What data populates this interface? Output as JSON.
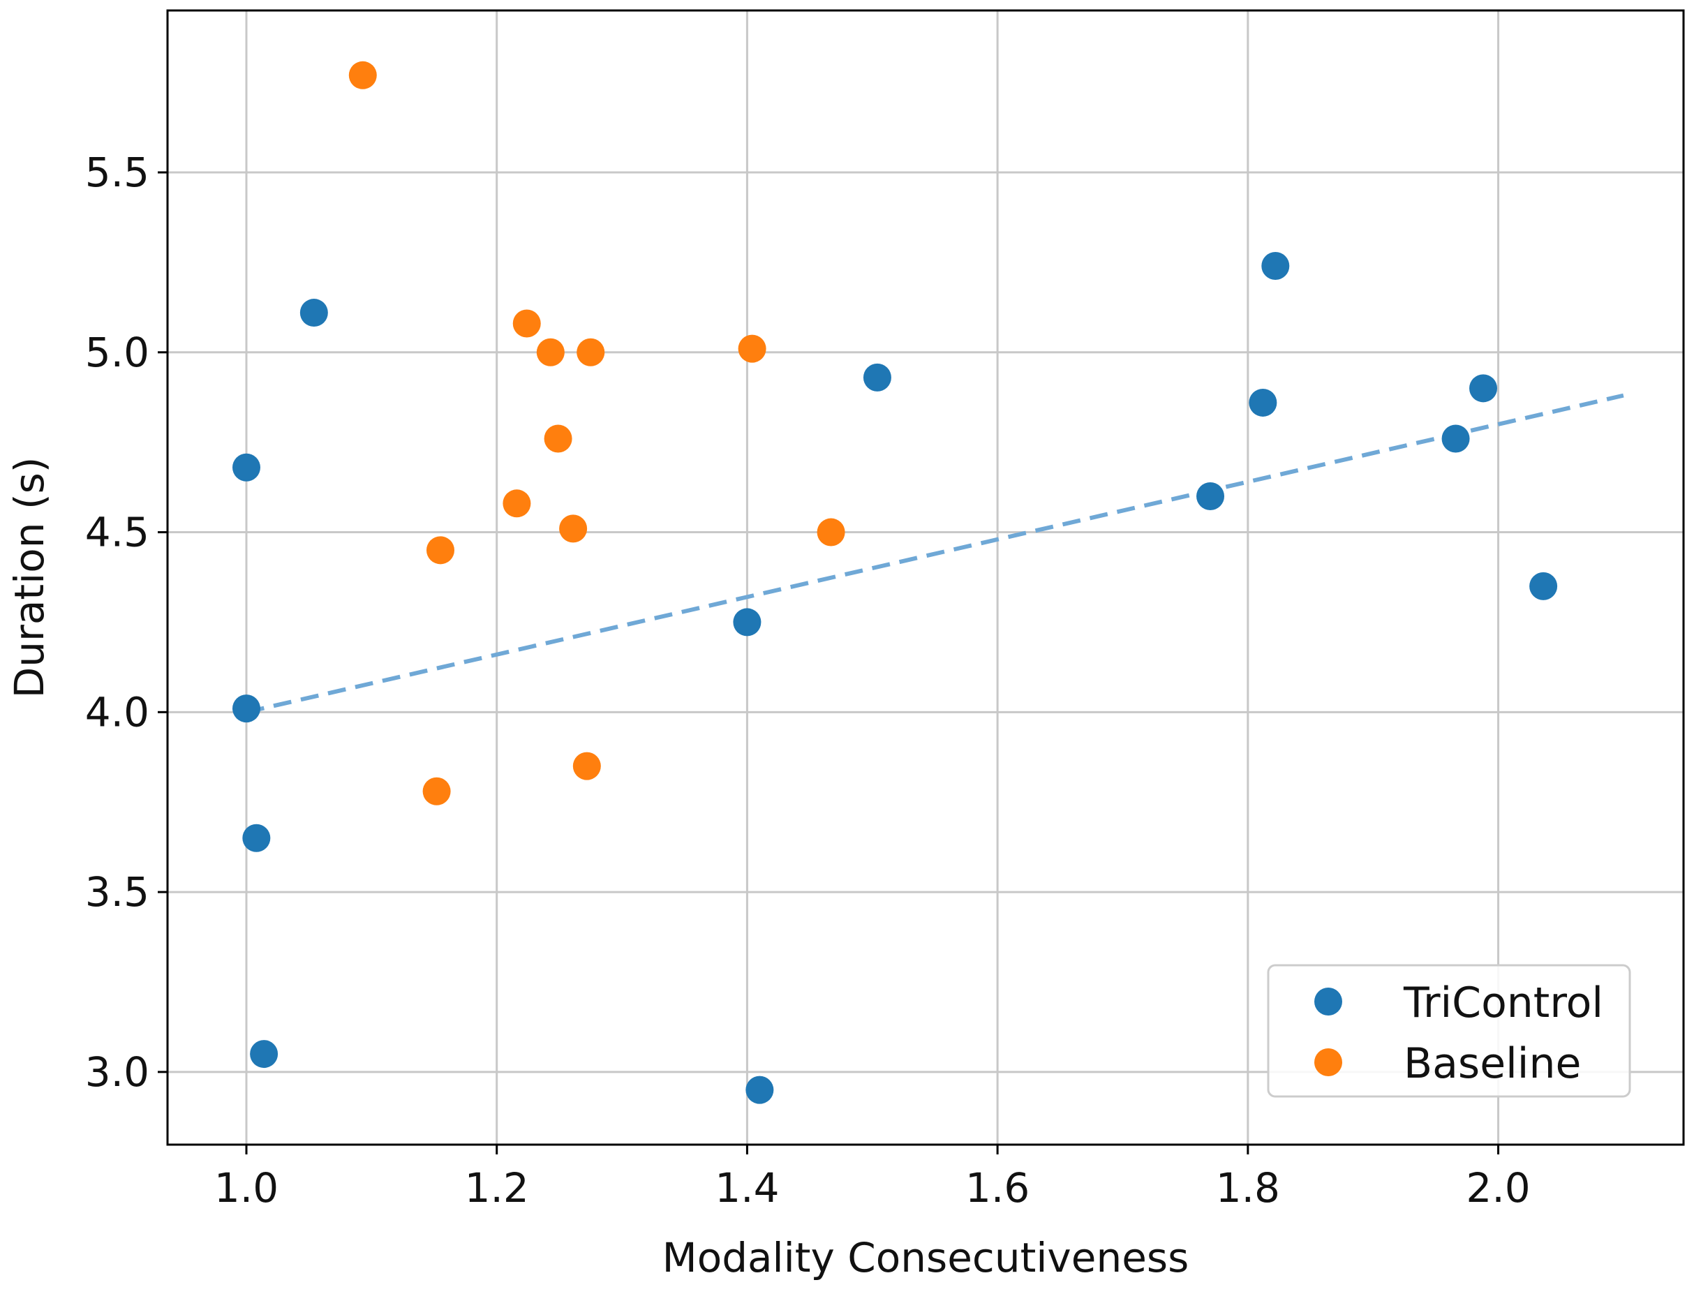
{
  "chart_data": {
    "type": "scatter",
    "title": "",
    "xlabel": "Modality Consecutiveness",
    "ylabel": "Duration (s)",
    "xlim": [
      0.937,
      2.148
    ],
    "ylim": [
      2.798,
      5.95
    ],
    "xticks": [
      "1.0",
      "1.2",
      "1.4",
      "1.6",
      "1.8",
      "2.0"
    ],
    "xtick_values": [
      1.0,
      1.2,
      1.4,
      1.6,
      1.8,
      2.0
    ],
    "yticks": [
      "3.0",
      "3.5",
      "4.0",
      "4.5",
      "5.0",
      "5.5"
    ],
    "ytick_values": [
      3.0,
      3.5,
      4.0,
      4.5,
      5.0,
      5.5
    ],
    "grid": true,
    "legend_position": "lower-right",
    "series": [
      {
        "name": "TriControl",
        "color": "#1f77b4",
        "points": [
          [
            1.0,
            4.68
          ],
          [
            1.0,
            4.01
          ],
          [
            1.008,
            3.65
          ],
          [
            1.014,
            3.05
          ],
          [
            1.054,
            5.11
          ],
          [
            1.4,
            4.25
          ],
          [
            1.41,
            2.95
          ],
          [
            1.504,
            4.93
          ],
          [
            1.77,
            4.6
          ],
          [
            1.812,
            4.86
          ],
          [
            1.822,
            5.24
          ],
          [
            1.966,
            4.76
          ],
          [
            1.988,
            4.9
          ],
          [
            2.036,
            4.35
          ]
        ]
      },
      {
        "name": "Baseline",
        "color": "#ff7f0e",
        "points": [
          [
            1.093,
            5.77
          ],
          [
            1.152,
            3.78
          ],
          [
            1.155,
            4.45
          ],
          [
            1.216,
            4.58
          ],
          [
            1.224,
            5.08
          ],
          [
            1.243,
            5.0
          ],
          [
            1.249,
            4.76
          ],
          [
            1.261,
            4.51
          ],
          [
            1.272,
            3.85
          ],
          [
            1.275,
            5.0
          ],
          [
            1.404,
            5.01
          ],
          [
            1.467,
            4.5
          ]
        ]
      }
    ],
    "trendline": {
      "series": "TriControl",
      "style": "dashed",
      "color": "#6fa8d6",
      "x": [
        1.0,
        2.1
      ],
      "y": [
        4.0,
        4.88
      ]
    }
  }
}
